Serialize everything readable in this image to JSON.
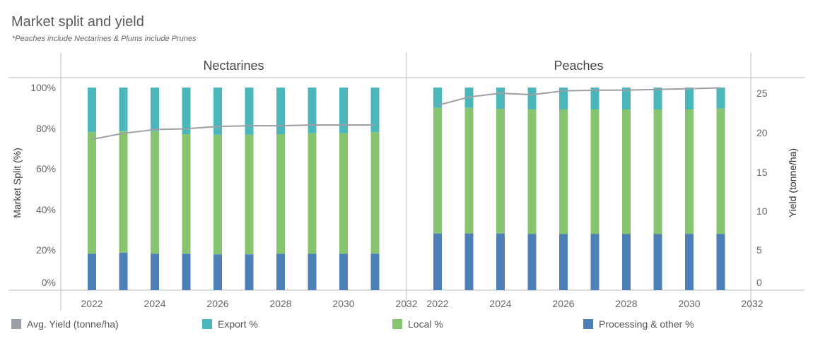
{
  "title": "Market split and yield",
  "subtitle": "*Peaches include Nectarines & Plums include Prunes",
  "colors": {
    "export": "#4bb6bc",
    "local": "#86c46f",
    "processing": "#4e7fb6",
    "yield": "#9aa0a6",
    "axis": "#bbbbbb"
  },
  "legend": [
    {
      "label": "Avg. Yield (tonne/ha)",
      "color": "#9aa0a6"
    },
    {
      "label": "Export %",
      "color": "#4bb6bc"
    },
    {
      "label": "Local %",
      "color": "#86c46f"
    },
    {
      "label": "Processing & other %",
      "color": "#4e7fb6"
    }
  ],
  "chart_data": {
    "type": "bar",
    "stacked": true,
    "y_left_label": "Market Split (%)",
    "y_right_label": "Yield (tonne/ha)",
    "y_left_ticks": [
      "0%",
      "20%",
      "40%",
      "60%",
      "80%",
      "100%"
    ],
    "y_right_ticks": [
      "0",
      "5",
      "10",
      "15",
      "20",
      "25"
    ],
    "y_left_range": [
      0,
      100
    ],
    "y_right_range": [
      0,
      25
    ],
    "x_ticks": [
      "2022",
      "2024",
      "2026",
      "2028",
      "2030",
      "2032"
    ],
    "panels": [
      {
        "name": "Nectarines",
        "years": [
          2022,
          2023,
          2024,
          2025,
          2026,
          2027,
          2028,
          2029,
          2030,
          2031
        ],
        "processing": [
          18,
          18.5,
          18,
          18,
          17.7,
          17.7,
          18,
          18,
          18,
          18
        ],
        "local": [
          60,
          60,
          60.5,
          59,
          59,
          59,
          59,
          59.5,
          59.5,
          60
        ],
        "export": [
          22,
          21.5,
          21.5,
          23,
          23.3,
          23.3,
          23,
          22.5,
          22.5,
          22
        ],
        "yield": [
          18.9,
          19.7,
          20.2,
          20.3,
          20.6,
          20.7,
          20.7,
          20.8,
          20.8,
          20.8
        ]
      },
      {
        "name": "Peaches",
        "years": [
          2022,
          2023,
          2024,
          2025,
          2026,
          2027,
          2028,
          2029,
          2030,
          2031
        ],
        "processing": [
          28,
          28,
          28,
          27.7,
          27.7,
          27.7,
          27.7,
          27.7,
          27.7,
          27.7
        ],
        "local": [
          62,
          62,
          61.5,
          61.5,
          61.5,
          61.5,
          61.5,
          61.5,
          61.5,
          62
        ],
        "export": [
          10,
          10,
          10.5,
          10.8,
          10.8,
          10.8,
          10.8,
          10.8,
          10.8,
          10.3
        ],
        "yield": [
          23.4,
          24.5,
          25.0,
          24.8,
          25.3,
          25.4,
          25.4,
          25.5,
          25.6,
          25.7
        ]
      }
    ]
  }
}
